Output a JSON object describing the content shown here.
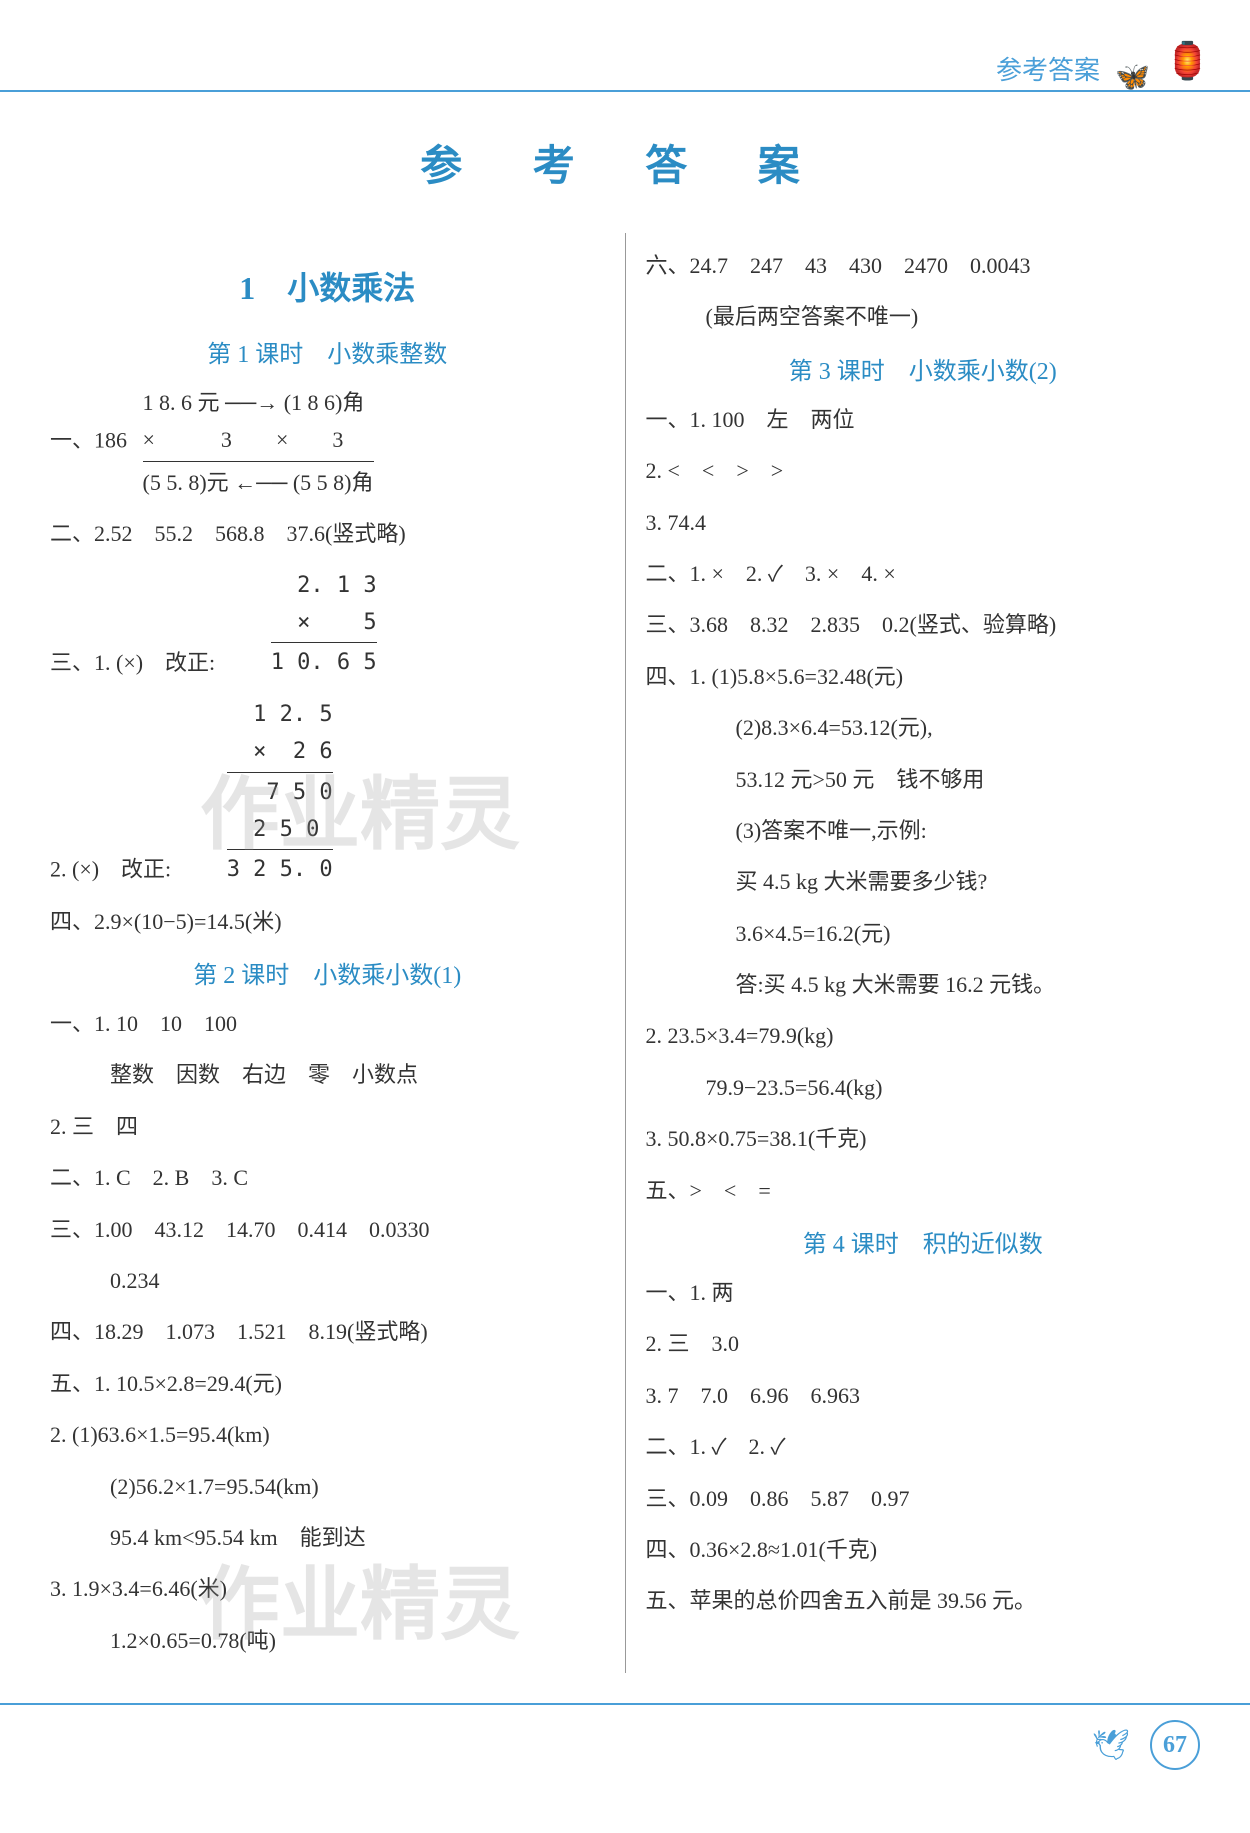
{
  "header": {
    "label": "参考答案"
  },
  "title": "参 考 答 案",
  "watermark": "作业精灵",
  "left": {
    "chapter": "1　小数乘法",
    "lesson1": {
      "title": "第 1 课时　小数乘整数",
      "l1a": "一、186",
      "l1b_top1": "1 8. 6 元",
      "l1b_top2": "(1 8 6)角",
      "l1b_mid1": "×　　　3",
      "l1b_mid2": "×　　3",
      "l1b_bot1": "(5 5. 8)元",
      "l1b_bot2": "(5 5 8)角",
      "l2": "二、2.52　55.2　568.8　37.6(竖式略)",
      "l3_1": "三、1. (×)　改正:",
      "l3_calc1_r1": "2. 1 3",
      "l3_calc1_r2": "×    5",
      "l3_calc1_r3": "1 0. 6 5",
      "l3_2": "2. (×)　改正:",
      "l3_calc2_r1": "1 2. 5",
      "l3_calc2_r2": "×  2 6",
      "l3_calc2_r3": "7 5 0",
      "l3_calc2_r4": "2 5 0 ",
      "l3_calc2_r5": "3 2 5. 0",
      "l4": "四、2.9×(10−5)=14.5(米)"
    },
    "lesson2": {
      "title": "第 2 课时　小数乘小数(1)",
      "l1_1": "一、1. 10　10　100",
      "l1_2": "整数　因数　右边　零　小数点",
      "l2": "2. 三　四",
      "l3": "二、1. C　2. B　3. C",
      "l4a": "三、1.00　43.12　14.70　0.414　0.0330",
      "l4b": "0.234",
      "l5": "四、18.29　1.073　1.521　8.19(竖式略)",
      "l6": "五、1. 10.5×2.8=29.4(元)",
      "l7a": "2. (1)63.6×1.5=95.4(km)",
      "l7b": "(2)56.2×1.7=95.54(km)",
      "l7c": "95.4 km<95.54 km　能到达",
      "l8a": "3. 1.9×3.4=6.46(米)",
      "l8b": "1.2×0.65=0.78(吨)"
    }
  },
  "right": {
    "l_top1": "六、24.7　247　43　430　2470　0.0043",
    "l_top2": "(最后两空答案不唯一)",
    "lesson3": {
      "title": "第 3 课时　小数乘小数(2)",
      "l1": "一、1. 100　左　两位",
      "l2": "2. <　<　>　>",
      "l3": "3. 74.4",
      "l4": "二、1. ×　2. ✓　3. ×　4. ×",
      "l5": "三、3.68　8.32　2.835　0.2(竖式、验算略)",
      "l6a": "四、1. (1)5.8×5.6=32.48(元)",
      "l6b": "(2)8.3×6.4=53.12(元),",
      "l6c": "53.12 元>50 元　钱不够用",
      "l6d": "(3)答案不唯一,示例:",
      "l6e": "买 4.5 kg 大米需要多少钱?",
      "l6f": "3.6×4.5=16.2(元)",
      "l6g": "答:买 4.5 kg 大米需要 16.2 元钱。",
      "l7a": "2. 23.5×3.4=79.9(kg)",
      "l7b": "79.9−23.5=56.4(kg)",
      "l8": "3. 50.8×0.75=38.1(千克)",
      "l9": "五、>　<　="
    },
    "lesson4": {
      "title": "第 4 课时　积的近似数",
      "l1": "一、1. 两",
      "l2": "2. 三　3.0",
      "l3": "3. 7　7.0　6.96　6.963",
      "l4": "二、1. ✓　2. ✓",
      "l5": "三、0.09　0.86　5.87　0.97",
      "l6": "四、0.36×2.8≈1.01(千克)",
      "l7": "五、苹果的总价四舍五入前是 39.56 元。"
    }
  },
  "page_number": "67",
  "colors": {
    "blue": "#2b8cc4",
    "light_blue": "#4a9fd8",
    "text": "#333333",
    "background": "#ffffff"
  }
}
